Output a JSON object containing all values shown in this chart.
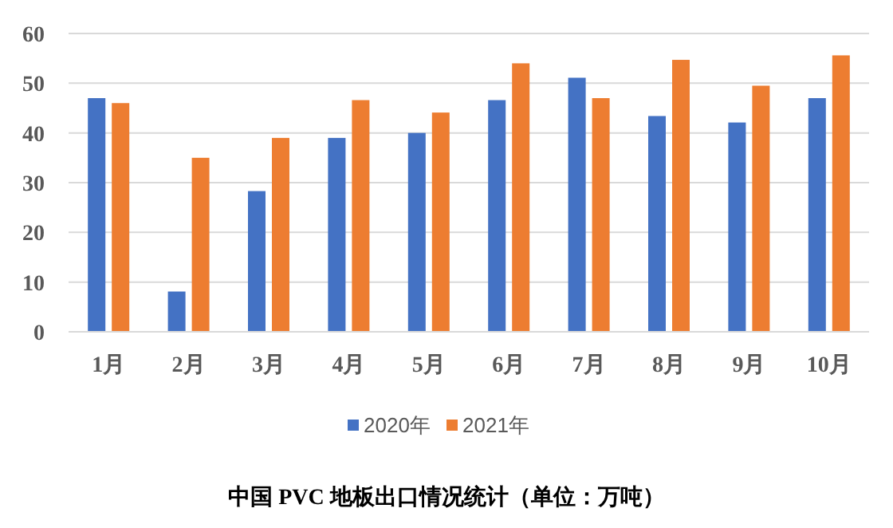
{
  "chart_data": {
    "type": "bar",
    "title": "中国 PVC 地板出口情况统计（单位：万吨）",
    "categories": [
      "1月",
      "2月",
      "3月",
      "4月",
      "5月",
      "6月",
      "7月",
      "8月",
      "9月",
      "10月"
    ],
    "series": [
      {
        "name": "2020年",
        "color": "#4472c4",
        "values": [
          47,
          8.1,
          28.3,
          39,
          40,
          46.6,
          51.1,
          43.4,
          42.1,
          47
        ]
      },
      {
        "name": "2021年",
        "color": "#ed7d31",
        "values": [
          46,
          35,
          39,
          46.6,
          44.1,
          54,
          47,
          54.7,
          49.5,
          55.6
        ]
      }
    ],
    "ylim": [
      0,
      60
    ],
    "yticks": [
      0,
      10,
      20,
      30,
      40,
      50,
      60
    ],
    "grid": "y",
    "legend": "bottom"
  }
}
